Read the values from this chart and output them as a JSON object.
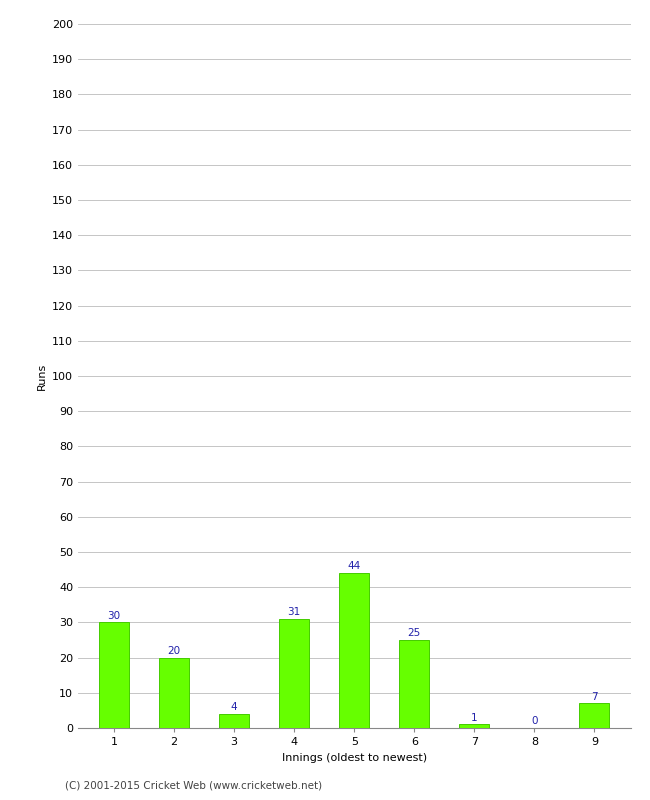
{
  "categories": [
    "1",
    "2",
    "3",
    "4",
    "5",
    "6",
    "7",
    "8",
    "9"
  ],
  "values": [
    30,
    20,
    4,
    31,
    44,
    25,
    1,
    0,
    7
  ],
  "bar_color": "#66ff00",
  "bar_edge_color": "#44cc00",
  "label_color": "#2222aa",
  "xlabel": "Innings (oldest to newest)",
  "ylabel": "Runs",
  "ylim": [
    0,
    200
  ],
  "yticks": [
    0,
    10,
    20,
    30,
    40,
    50,
    60,
    70,
    80,
    90,
    100,
    110,
    120,
    130,
    140,
    150,
    160,
    170,
    180,
    190,
    200
  ],
  "footer": "(C) 2001-2015 Cricket Web (www.cricketweb.net)",
  "background_color": "#ffffff",
  "grid_color": "#bbbbbb",
  "label_fontsize": 7.5,
  "axis_tick_fontsize": 8,
  "axis_label_fontsize": 8,
  "footer_fontsize": 7.5,
  "bar_width": 0.5
}
